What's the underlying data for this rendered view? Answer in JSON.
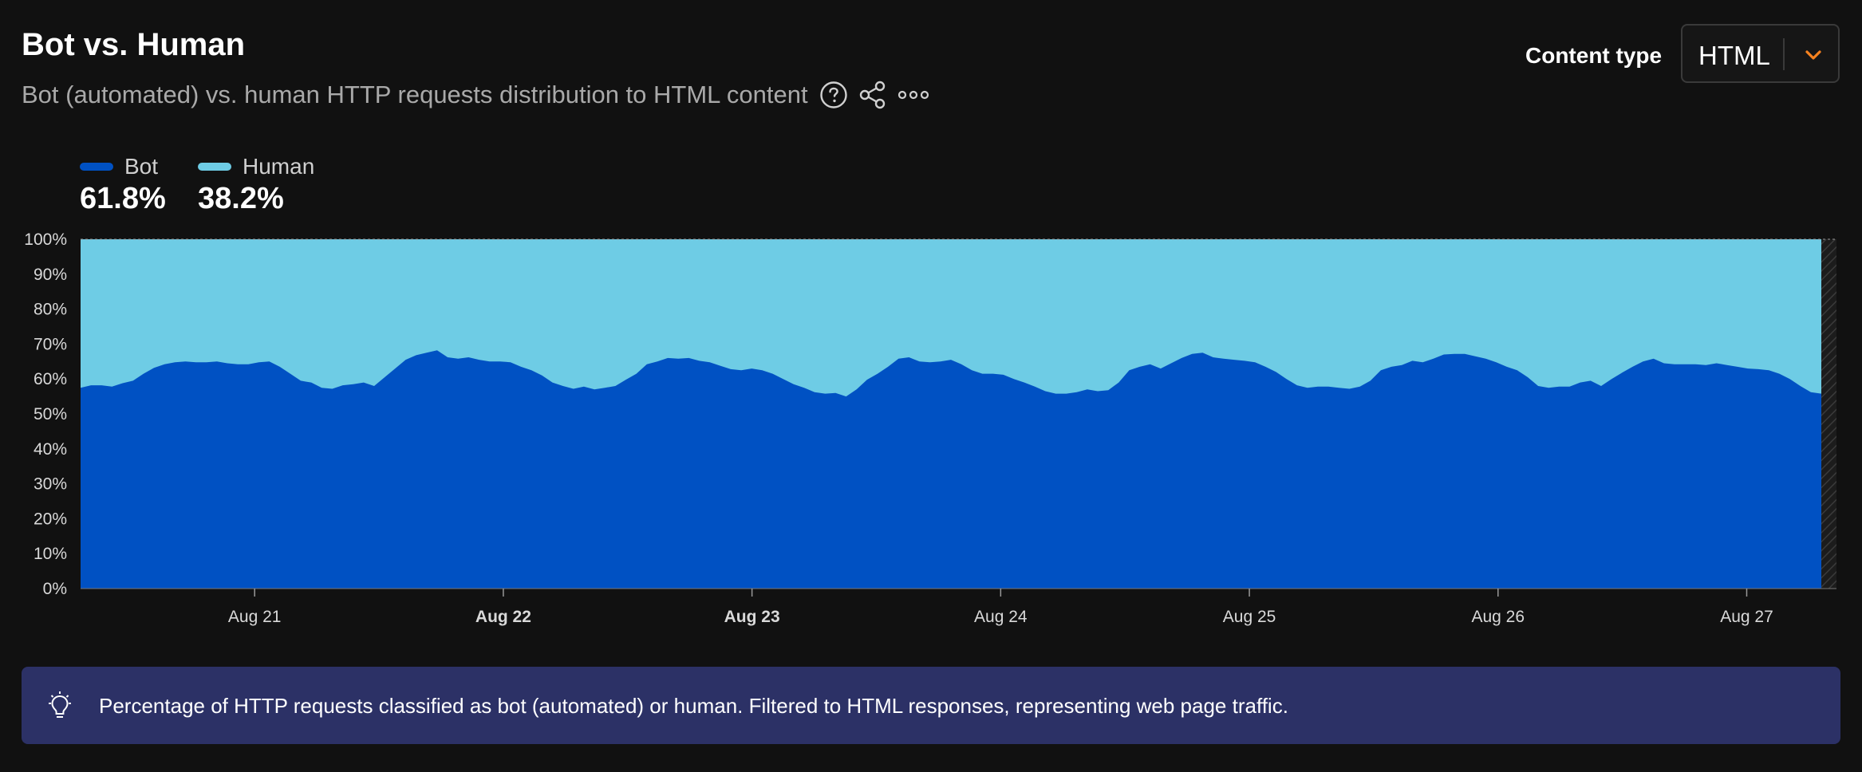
{
  "header": {
    "title": "Bot vs. Human",
    "subtitle": "Bot (automated) vs. human HTTP requests distribution to HTML content"
  },
  "icons": {
    "help": "question-circle-icon",
    "share": "share-icon",
    "more": "more-options-icon",
    "chevron": "chevron-down-icon",
    "tip": "lightbulb-icon"
  },
  "filter": {
    "label": "Content type",
    "value": "HTML"
  },
  "legend": [
    {
      "name": "Bot",
      "value": "61.8%",
      "color": "#0051c3"
    },
    {
      "name": "Human",
      "value": "38.2%",
      "color": "#6ecce5"
    }
  ],
  "chart_data": {
    "type": "area",
    "stacked": true,
    "ylim": [
      0,
      100
    ],
    "yticks": [
      "0%",
      "10%",
      "20%",
      "30%",
      "40%",
      "50%",
      "60%",
      "70%",
      "80%",
      "90%",
      "100%"
    ],
    "xticks": [
      {
        "label": "Aug 21",
        "bold": false,
        "x": 5.7
      },
      {
        "label": "Aug 22",
        "bold": true,
        "x": 6.7
      },
      {
        "label": "Aug 23",
        "bold": true,
        "x": 7.7
      },
      {
        "label": "Aug 24",
        "bold": false,
        "x": 8.7
      },
      {
        "label": "Aug 25",
        "bold": false,
        "x": 9.7
      },
      {
        "label": "Aug 26",
        "bold": false,
        "x": 10.7
      },
      {
        "label": "Aug 27",
        "bold": false,
        "x": 11.7
      }
    ],
    "xlim": [
      0,
      7.0
    ],
    "grid": false,
    "series": [
      {
        "name": "Bot",
        "color": "#0051c3",
        "values": [
          57.5,
          58.2,
          58.2,
          57.8,
          58.8,
          59.5,
          61.5,
          63.2,
          64.2,
          64.8,
          65.0,
          64.8,
          64.8,
          65.0,
          64.5,
          64.2,
          64.2,
          64.8,
          65.0,
          63.5,
          61.5,
          59.5,
          59.0,
          57.5,
          57.2,
          58.2,
          58.5,
          59.0,
          58.0,
          60.5,
          63.0,
          65.5,
          66.8,
          67.5,
          68.2,
          66.2,
          65.8,
          66.2,
          65.5,
          65.0,
          65.0,
          64.8,
          63.5,
          62.5,
          61.0,
          59.0,
          58.0,
          57.2,
          57.8,
          57.0,
          57.5,
          58.0,
          59.8,
          61.5,
          64.2,
          65.0,
          66.0,
          65.8,
          66.0,
          65.2,
          64.8,
          63.8,
          62.8,
          62.5,
          63.0,
          62.5,
          61.5,
          60.0,
          58.5,
          57.5,
          56.2,
          55.8,
          56.0,
          55.0,
          57.0,
          59.8,
          61.5,
          63.5,
          65.8,
          66.2,
          65.0,
          64.8,
          65.0,
          65.5,
          64.2,
          62.5,
          61.5,
          61.5,
          61.2,
          60.0,
          59.0,
          57.8,
          56.5,
          55.8,
          55.8,
          56.2,
          57.0,
          56.5,
          56.8,
          59.0,
          62.5,
          63.5,
          64.2,
          63.0,
          64.5,
          66.0,
          67.2,
          67.5,
          66.2,
          65.8,
          65.5,
          65.2,
          64.8,
          63.5,
          62.0,
          60.0,
          58.2,
          57.5,
          57.8,
          57.8,
          57.5,
          57.2,
          57.8,
          59.5,
          62.5,
          63.5,
          64.0,
          65.2,
          64.8,
          65.8,
          67.0,
          67.2,
          67.2,
          66.5,
          65.8,
          64.8,
          63.5,
          62.5,
          60.5,
          58.0,
          57.5,
          57.8,
          57.8,
          59.0,
          59.5,
          58.0,
          60.0,
          61.8,
          63.5,
          65.0,
          65.8,
          64.5,
          64.2,
          64.2,
          64.2,
          64.0,
          64.5,
          64.0,
          63.5,
          63.0,
          62.8,
          62.5,
          61.5,
          60.0,
          58.0,
          56.2,
          55.8
        ]
      },
      {
        "name": "Human",
        "color": "#6ecce5",
        "values_note": ""
      }
    ]
  },
  "note": {
    "text": "Percentage of HTTP requests classified as bot (automated) or human. Filtered to HTML responses, representing web page traffic."
  }
}
